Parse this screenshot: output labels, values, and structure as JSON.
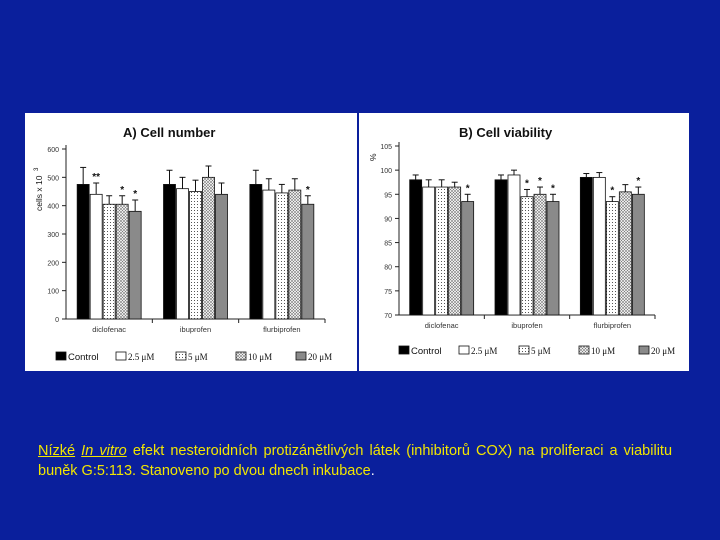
{
  "chart_data": [
    {
      "type": "bar",
      "title": "A) Cell number",
      "ylabel": "cells x 10",
      "ylabel_exponent": "3",
      "ylim": [
        0,
        600
      ],
      "yticks": [
        0,
        100,
        200,
        300,
        400,
        500,
        600
      ],
      "categories": [
        "diclofenac",
        "ibuprofen",
        "flurbiprofen"
      ],
      "series": [
        {
          "name": "Control",
          "values": [
            475,
            475,
            475
          ],
          "errors": [
            60,
            50,
            50
          ]
        },
        {
          "name": "2.5 μM",
          "values": [
            440,
            460,
            455
          ],
          "errors": [
            40,
            40,
            40
          ]
        },
        {
          "name": "5 μM",
          "values": [
            405,
            450,
            445
          ],
          "errors": [
            30,
            40,
            30
          ]
        },
        {
          "name": "10 μM",
          "values": [
            405,
            500,
            455
          ],
          "errors": [
            30,
            40,
            40
          ]
        },
        {
          "name": "20 μM",
          "values": [
            380,
            440,
            405
          ],
          "errors": [
            40,
            40,
            30
          ]
        }
      ],
      "annotations": [
        {
          "category": 0,
          "series": 1,
          "text": "**"
        },
        {
          "category": 0,
          "series": 3,
          "text": "*"
        },
        {
          "category": 0,
          "series": 4,
          "text": "*"
        },
        {
          "category": 2,
          "series": 4,
          "text": "*"
        }
      ],
      "legend": [
        "Control",
        "2.5 μM",
        "5 μM",
        "10 μM",
        "20 μM"
      ],
      "legend_position": "bottom"
    },
    {
      "type": "bar",
      "title": "B) Cell viability",
      "ylabel": "%",
      "ylim": [
        70,
        105
      ],
      "yticks": [
        70,
        75,
        80,
        85,
        90,
        95,
        100,
        105
      ],
      "categories": [
        "diclofenac",
        "ibuprofen",
        "flurbiprofen"
      ],
      "series": [
        {
          "name": "Control",
          "values": [
            98,
            98,
            98.5
          ],
          "errors": [
            1,
            1,
            0.8
          ]
        },
        {
          "name": "2.5 μM",
          "values": [
            96.5,
            99,
            98.5
          ],
          "errors": [
            1.5,
            1,
            1
          ]
        },
        {
          "name": "5 μM",
          "values": [
            96.5,
            94.5,
            93.5
          ],
          "errors": [
            1.5,
            1.5,
            1
          ]
        },
        {
          "name": "10 μM",
          "values": [
            96.5,
            95,
            95.5
          ],
          "errors": [
            1,
            1.5,
            1.5
          ]
        },
        {
          "name": "20 μM",
          "values": [
            93.5,
            93.5,
            95
          ],
          "errors": [
            1.5,
            1.5,
            1.5
          ]
        }
      ],
      "annotations": [
        {
          "category": 0,
          "series": 4,
          "text": "*"
        },
        {
          "category": 1,
          "series": 2,
          "text": "*"
        },
        {
          "category": 1,
          "series": 3,
          "text": "*"
        },
        {
          "category": 1,
          "series": 4,
          "text": "*"
        },
        {
          "category": 2,
          "series": 2,
          "text": "*"
        },
        {
          "category": 2,
          "series": 4,
          "text": "*"
        }
      ],
      "legend": [
        "Control",
        "2.5 μM",
        "5 μM",
        "10 μM",
        "20 μM"
      ],
      "legend_position": "bottom"
    }
  ],
  "caption": {
    "lead": "Nízké",
    "em": "In vitro",
    "part1": " efekt nesteroidních protizánětlivých látek (inhibitorů COX) na proliferaci a viabilitu buněk G:5:113. Stanoveno po dvou dnech inkubace",
    "dot": "."
  },
  "colors": {
    "background": "#0a1f9c",
    "caption": "#f2e600",
    "series_fills": [
      "#000000",
      "#ffffff",
      "#ffffff",
      "#e6e6e6",
      "#8a8a8a"
    ]
  }
}
